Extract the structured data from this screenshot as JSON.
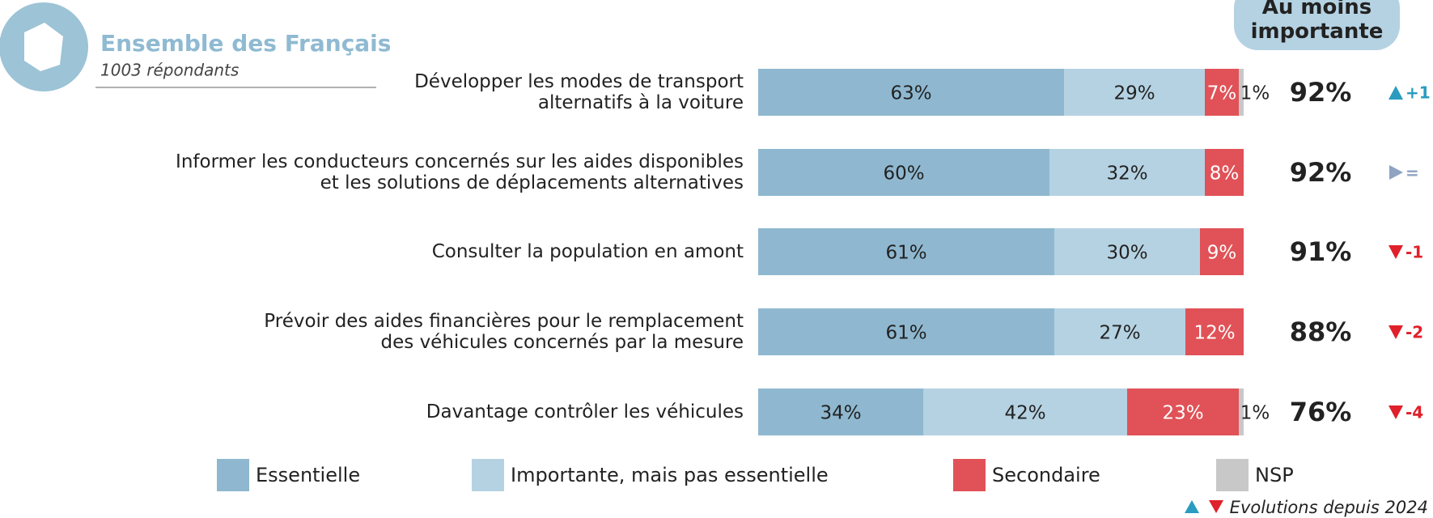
{
  "chart_data": {
    "type": "stacked-bar-horizontal",
    "title": "Ensemble des Français",
    "subtitle": "1003 répondants",
    "categories": [
      "Développer les modes de transport\nalternatifs à la voiture",
      "Informer les conducteurs concernés sur les aides disponibles\net les solutions de déplacements alternatives",
      "Consulter la population en amont",
      "Prévoir des aides financières pour le remplacement\ndes véhicules concernés par la mesure",
      "Davantage contrôler les véhicules"
    ],
    "xlim": [
      0,
      100
    ],
    "series": [
      {
        "name": "Essentielle",
        "color": "#8fb8d0",
        "values": [
          63,
          60,
          61,
          61,
          34
        ],
        "value_labels": [
          "63%",
          "60%",
          "61%",
          "61%",
          "34%"
        ]
      },
      {
        "name": "Importante, mais pas essentielle",
        "color": "#b5d2e2",
        "values": [
          29,
          32,
          30,
          27,
          42
        ],
        "value_labels": [
          "29%",
          "32%",
          "30%",
          "27%",
          "42%"
        ]
      },
      {
        "name": "Secondaire",
        "color": "#e05257",
        "values": [
          7,
          8,
          9,
          12,
          23
        ],
        "value_labels": [
          "7%",
          "8%",
          "9%",
          "12%",
          "23%"
        ]
      },
      {
        "name": "NSP",
        "color": "#c8c8c8",
        "values": [
          1,
          0,
          0,
          0,
          1
        ],
        "value_labels": [
          "1%",
          null,
          null,
          null,
          "1%"
        ]
      }
    ],
    "totals": {
      "title": "Au moins importante",
      "values": [
        92,
        92,
        91,
        88,
        76
      ],
      "value_labels": [
        "92%",
        "92%",
        "91%",
        "88%",
        "76%"
      ]
    },
    "evolutions": {
      "note": "Evolutions depuis 2024",
      "values": [
        1,
        0,
        -1,
        -2,
        -4
      ],
      "value_labels": [
        "+1",
        "=",
        "-1",
        "-2",
        "-4"
      ],
      "colors": {
        "up": "#2a9cc0",
        "flat": "#8fa3c2",
        "down": "#e0202a"
      }
    }
  }
}
